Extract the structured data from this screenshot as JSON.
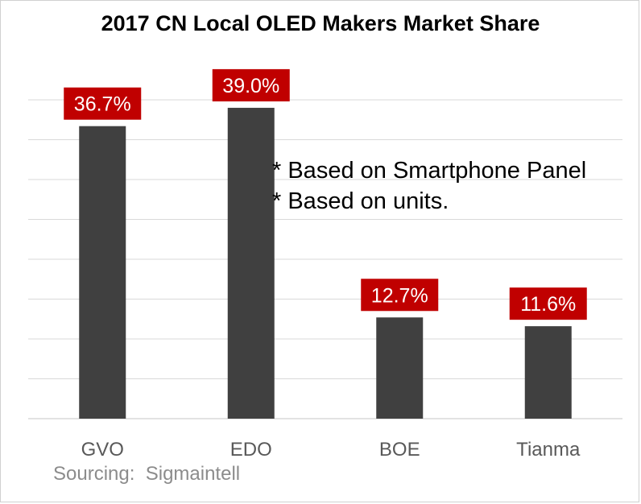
{
  "chart_data": {
    "type": "bar",
    "title": "2017 CN Local OLED Makers Market Share",
    "categories": [
      "GVO",
      "EDO",
      "BOE",
      "Tianma"
    ],
    "values": [
      36.7,
      39.0,
      12.7,
      11.6
    ],
    "data_labels": [
      "36.7%",
      "39.0%",
      "12.7%",
      "11.6%"
    ],
    "ylim": [
      0,
      45
    ],
    "grid": true,
    "legend": "none",
    "notes": [
      "* Based on Smartphone Panel",
      "* Based on units."
    ],
    "source": "Sourcing:  Sigmaintell",
    "colors": {
      "bar": "#404040",
      "label_bg": "#c00000",
      "label_text": "#ffffff",
      "grid": "#d9d9d9",
      "category_text": "#595959"
    }
  }
}
